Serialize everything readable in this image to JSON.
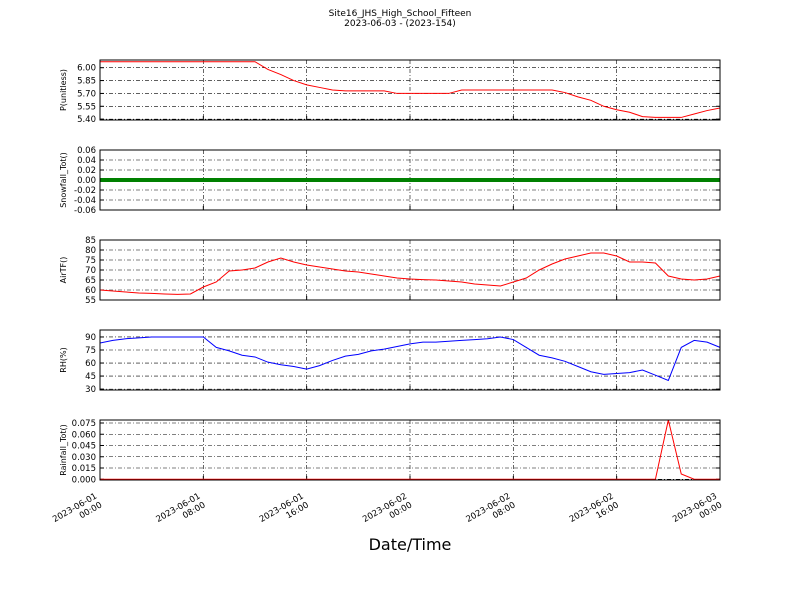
{
  "title": "Site16_JHS_High_School_Fifteen",
  "subtitle": "2023-06-03 - (2023-154)",
  "xlabel": "Date/Time",
  "chart_data": [
    {
      "type": "line",
      "ylabel": "P(unitless)",
      "x": [
        "2023-06-01 00:00",
        "2023-06-01 01:00",
        "2023-06-01 02:00",
        "2023-06-01 03:00",
        "2023-06-01 04:00",
        "2023-06-01 05:00",
        "2023-06-01 06:00",
        "2023-06-01 07:00",
        "2023-06-01 08:00",
        "2023-06-01 09:00",
        "2023-06-01 10:00",
        "2023-06-01 11:00",
        "2023-06-01 12:00",
        "2023-06-01 13:00",
        "2023-06-01 14:00",
        "2023-06-01 15:00",
        "2023-06-01 16:00",
        "2023-06-01 17:00",
        "2023-06-01 18:00",
        "2023-06-01 19:00",
        "2023-06-01 20:00",
        "2023-06-01 21:00",
        "2023-06-01 22:00",
        "2023-06-01 23:00",
        "2023-06-02 00:00",
        "2023-06-02 01:00",
        "2023-06-02 02:00",
        "2023-06-02 03:00",
        "2023-06-02 04:00",
        "2023-06-02 05:00",
        "2023-06-02 06:00",
        "2023-06-02 07:00",
        "2023-06-02 08:00",
        "2023-06-02 09:00",
        "2023-06-02 10:00",
        "2023-06-02 11:00",
        "2023-06-02 12:00",
        "2023-06-02 13:00",
        "2023-06-02 14:00",
        "2023-06-02 15:00",
        "2023-06-02 16:00",
        "2023-06-02 17:00",
        "2023-06-02 18:00",
        "2023-06-02 19:00",
        "2023-06-02 20:00",
        "2023-06-02 21:00",
        "2023-06-02 22:00",
        "2023-06-02 23:00",
        "2023-06-03 00:00"
      ],
      "series": [
        {
          "color": "#ff0000",
          "values": [
            6.07,
            6.07,
            6.07,
            6.07,
            6.07,
            6.07,
            6.07,
            6.07,
            6.07,
            6.07,
            6.07,
            6.07,
            6.07,
            5.98,
            5.92,
            5.85,
            5.8,
            5.77,
            5.74,
            5.73,
            5.73,
            5.73,
            5.73,
            5.7,
            5.7,
            5.7,
            5.7,
            5.7,
            5.74,
            5.74,
            5.74,
            5.74,
            5.74,
            5.74,
            5.74,
            5.74,
            5.71,
            5.66,
            5.62,
            5.55,
            5.51,
            5.48,
            5.43,
            5.42,
            5.42,
            5.42,
            5.46,
            5.5,
            5.53
          ]
        }
      ],
      "xlim": [
        "2023-06-01 00:00",
        "2023-06-03 00:00"
      ],
      "xticks": [
        "2023-06-01 00:00",
        "2023-06-01 08:00",
        "2023-06-01 16:00",
        "2023-06-02 00:00",
        "2023-06-02 08:00",
        "2023-06-02 16:00",
        "2023-06-03 00:00"
      ],
      "ylim": [
        5.39,
        6.09
      ],
      "yticks": [
        {
          "value": 5.4,
          "label": "5.40"
        },
        {
          "value": 5.55,
          "label": "5.55"
        },
        {
          "value": 5.7,
          "label": "5.70"
        },
        {
          "value": 5.85,
          "label": "5.85"
        },
        {
          "value": 6,
          "label": "6.00"
        }
      ],
      "grid": true
    },
    {
      "type": "line",
      "ylabel": "Snowfall_Tot()",
      "x": [
        "2023-06-01 00:00",
        "2023-06-01 01:00",
        "2023-06-01 02:00",
        "2023-06-01 03:00",
        "2023-06-01 04:00",
        "2023-06-01 05:00",
        "2023-06-01 06:00",
        "2023-06-01 07:00",
        "2023-06-01 08:00",
        "2023-06-01 09:00",
        "2023-06-01 10:00",
        "2023-06-01 11:00",
        "2023-06-01 12:00",
        "2023-06-01 13:00",
        "2023-06-01 14:00",
        "2023-06-01 15:00",
        "2023-06-01 16:00",
        "2023-06-01 17:00",
        "2023-06-01 18:00",
        "2023-06-01 19:00",
        "2023-06-01 20:00",
        "2023-06-01 21:00",
        "2023-06-01 22:00",
        "2023-06-01 23:00",
        "2023-06-02 00:00",
        "2023-06-02 01:00",
        "2023-06-02 02:00",
        "2023-06-02 03:00",
        "2023-06-02 04:00",
        "2023-06-02 05:00",
        "2023-06-02 06:00",
        "2023-06-02 07:00",
        "2023-06-02 08:00",
        "2023-06-02 09:00",
        "2023-06-02 10:00",
        "2023-06-02 11:00",
        "2023-06-02 12:00",
        "2023-06-02 13:00",
        "2023-06-02 14:00",
        "2023-06-02 15:00",
        "2023-06-02 16:00",
        "2023-06-02 17:00",
        "2023-06-02 18:00",
        "2023-06-02 19:00",
        "2023-06-02 20:00",
        "2023-06-02 21:00",
        "2023-06-02 22:00",
        "2023-06-02 23:00",
        "2023-06-03 00:00"
      ],
      "series": [
        {
          "color": "#008000",
          "values": [
            0,
            0,
            0,
            0,
            0,
            0,
            0,
            0,
            0,
            0,
            0,
            0,
            0,
            0,
            0,
            0,
            0,
            0,
            0,
            0,
            0,
            0,
            0,
            0,
            0,
            0,
            0,
            0,
            0,
            0,
            0,
            0,
            0,
            0,
            0,
            0,
            0,
            0,
            0,
            0,
            0,
            0,
            0,
            0,
            0,
            0,
            0,
            0,
            0
          ]
        }
      ],
      "xlim": [
        "2023-06-01 00:00",
        "2023-06-03 00:00"
      ],
      "xticks": [
        "2023-06-01 00:00",
        "2023-06-01 08:00",
        "2023-06-01 16:00",
        "2023-06-02 00:00",
        "2023-06-02 08:00",
        "2023-06-02 16:00",
        "2023-06-03 00:00"
      ],
      "ylim": [
        -0.06,
        0.06
      ],
      "yticks": [
        {
          "value": -0.06,
          "label": "-0.06"
        },
        {
          "value": -0.04,
          "label": "-0.04"
        },
        {
          "value": -0.02,
          "label": "-0.02"
        },
        {
          "value": 0,
          "label": "0.00"
        },
        {
          "value": 0.02,
          "label": "0.02"
        },
        {
          "value": 0.04,
          "label": "0.04"
        },
        {
          "value": 0.06,
          "label": "0.06"
        }
      ],
      "grid": true
    },
    {
      "type": "line",
      "ylabel": "AirTF()",
      "x": [
        "2023-06-01 00:00",
        "2023-06-01 01:00",
        "2023-06-01 02:00",
        "2023-06-01 03:00",
        "2023-06-01 04:00",
        "2023-06-01 05:00",
        "2023-06-01 06:00",
        "2023-06-01 07:00",
        "2023-06-01 08:00",
        "2023-06-01 09:00",
        "2023-06-01 10:00",
        "2023-06-01 11:00",
        "2023-06-01 12:00",
        "2023-06-01 13:00",
        "2023-06-01 14:00",
        "2023-06-01 15:00",
        "2023-06-01 16:00",
        "2023-06-01 17:00",
        "2023-06-01 18:00",
        "2023-06-01 19:00",
        "2023-06-01 20:00",
        "2023-06-01 21:00",
        "2023-06-01 22:00",
        "2023-06-01 23:00",
        "2023-06-02 00:00",
        "2023-06-02 01:00",
        "2023-06-02 02:00",
        "2023-06-02 03:00",
        "2023-06-02 04:00",
        "2023-06-02 05:00",
        "2023-06-02 06:00",
        "2023-06-02 07:00",
        "2023-06-02 08:00",
        "2023-06-02 09:00",
        "2023-06-02 10:00",
        "2023-06-02 11:00",
        "2023-06-02 12:00",
        "2023-06-02 13:00",
        "2023-06-02 14:00",
        "2023-06-02 15:00",
        "2023-06-02 16:00",
        "2023-06-02 17:00",
        "2023-06-02 18:00",
        "2023-06-02 19:00",
        "2023-06-02 20:00",
        "2023-06-02 21:00",
        "2023-06-02 22:00",
        "2023-06-02 23:00",
        "2023-06-03 00:00"
      ],
      "series": [
        {
          "color": "#ff0000",
          "values": [
            60,
            59.5,
            59,
            58.5,
            58.3,
            58,
            57.8,
            58,
            61.5,
            64,
            69.5,
            70,
            71,
            74,
            76,
            74,
            72.5,
            71.5,
            70.5,
            69.5,
            69,
            68,
            67,
            66,
            65.5,
            65.2,
            65,
            64.5,
            64,
            63,
            62.5,
            62,
            64,
            66,
            70,
            73,
            75.5,
            77,
            78.5,
            78.5,
            77,
            74,
            74,
            73.5,
            67,
            65.5,
            65,
            65.5,
            67
          ]
        }
      ],
      "xlim": [
        "2023-06-01 00:00",
        "2023-06-03 00:00"
      ],
      "xticks": [
        "2023-06-01 00:00",
        "2023-06-01 08:00",
        "2023-06-01 16:00",
        "2023-06-02 00:00",
        "2023-06-02 08:00",
        "2023-06-02 16:00",
        "2023-06-03 00:00"
      ],
      "ylim": [
        55,
        85
      ],
      "yticks": [
        55,
        60,
        65,
        70,
        75,
        80,
        85
      ],
      "grid": true
    },
    {
      "type": "line",
      "ylabel": "RH(%)",
      "x": [
        "2023-06-01 00:00",
        "2023-06-01 01:00",
        "2023-06-01 02:00",
        "2023-06-01 03:00",
        "2023-06-01 04:00",
        "2023-06-01 05:00",
        "2023-06-01 06:00",
        "2023-06-01 07:00",
        "2023-06-01 08:00",
        "2023-06-01 09:00",
        "2023-06-01 10:00",
        "2023-06-01 11:00",
        "2023-06-01 12:00",
        "2023-06-01 13:00",
        "2023-06-01 14:00",
        "2023-06-01 15:00",
        "2023-06-01 16:00",
        "2023-06-01 17:00",
        "2023-06-01 18:00",
        "2023-06-01 19:00",
        "2023-06-01 20:00",
        "2023-06-01 21:00",
        "2023-06-01 22:00",
        "2023-06-01 23:00",
        "2023-06-02 00:00",
        "2023-06-02 01:00",
        "2023-06-02 02:00",
        "2023-06-02 03:00",
        "2023-06-02 04:00",
        "2023-06-02 05:00",
        "2023-06-02 06:00",
        "2023-06-02 07:00",
        "2023-06-02 08:00",
        "2023-06-02 09:00",
        "2023-06-02 10:00",
        "2023-06-02 11:00",
        "2023-06-02 12:00",
        "2023-06-02 13:00",
        "2023-06-02 14:00",
        "2023-06-02 15:00",
        "2023-06-02 16:00",
        "2023-06-02 17:00",
        "2023-06-02 18:00",
        "2023-06-02 19:00",
        "2023-06-02 20:00",
        "2023-06-02 21:00",
        "2023-06-02 22:00",
        "2023-06-02 23:00",
        "2023-06-03 00:00"
      ],
      "series": [
        {
          "color": "#0000ff",
          "values": [
            83,
            86,
            88,
            89,
            90,
            90,
            90,
            90,
            90,
            78,
            74,
            69,
            67,
            61,
            58,
            56,
            53,
            57,
            63,
            68,
            70,
            74,
            76,
            79,
            82,
            84,
            84,
            85,
            86,
            87,
            88,
            90,
            87,
            78,
            69,
            66,
            62,
            56,
            50,
            47,
            48,
            49,
            52,
            46,
            40,
            78,
            86,
            84,
            78
          ]
        }
      ],
      "xlim": [
        "2023-06-01 00:00",
        "2023-06-03 00:00"
      ],
      "xticks": [
        "2023-06-01 00:00",
        "2023-06-01 08:00",
        "2023-06-01 16:00",
        "2023-06-02 00:00",
        "2023-06-02 08:00",
        "2023-06-02 16:00",
        "2023-06-03 00:00"
      ],
      "ylim": [
        29,
        98
      ],
      "yticks": [
        30,
        45,
        60,
        75,
        90
      ],
      "grid": true
    },
    {
      "type": "line",
      "ylabel": "Rainfall_Tot()",
      "x": [
        "2023-06-01 00:00",
        "2023-06-01 01:00",
        "2023-06-01 02:00",
        "2023-06-01 03:00",
        "2023-06-01 04:00",
        "2023-06-01 05:00",
        "2023-06-01 06:00",
        "2023-06-01 07:00",
        "2023-06-01 08:00",
        "2023-06-01 09:00",
        "2023-06-01 10:00",
        "2023-06-01 11:00",
        "2023-06-01 12:00",
        "2023-06-01 13:00",
        "2023-06-01 14:00",
        "2023-06-01 15:00",
        "2023-06-01 16:00",
        "2023-06-01 17:00",
        "2023-06-01 18:00",
        "2023-06-01 19:00",
        "2023-06-01 20:00",
        "2023-06-01 21:00",
        "2023-06-01 22:00",
        "2023-06-01 23:00",
        "2023-06-02 00:00",
        "2023-06-02 01:00",
        "2023-06-02 02:00",
        "2023-06-02 03:00",
        "2023-06-02 04:00",
        "2023-06-02 05:00",
        "2023-06-02 06:00",
        "2023-06-02 07:00",
        "2023-06-02 08:00",
        "2023-06-02 09:00",
        "2023-06-02 10:00",
        "2023-06-02 11:00",
        "2023-06-02 12:00",
        "2023-06-02 13:00",
        "2023-06-02 14:00",
        "2023-06-02 15:00",
        "2023-06-02 16:00",
        "2023-06-02 17:00",
        "2023-06-02 18:00",
        "2023-06-02 19:00",
        "2023-06-02 20:00",
        "2023-06-02 21:00",
        "2023-06-02 22:00",
        "2023-06-02 23:00",
        "2023-06-03 00:00"
      ],
      "series": [
        {
          "color": "#ff0000",
          "values": [
            0,
            0,
            0,
            0,
            0,
            0,
            0,
            0,
            0,
            0,
            0,
            0,
            0,
            0,
            0,
            0,
            0,
            0,
            0,
            0,
            0,
            0,
            0,
            0,
            0,
            0,
            0,
            0,
            0,
            0,
            0,
            0,
            0,
            0,
            0,
            0,
            0,
            0,
            0,
            0,
            0,
            0,
            0,
            0,
            0.079,
            0.007,
            0,
            0,
            0
          ]
        }
      ],
      "xlim": [
        "2023-06-01 00:00",
        "2023-06-03 00:00"
      ],
      "xticks": [
        {
          "value": "2023-06-01 00:00",
          "label": "2023-06-01\n00:00"
        },
        {
          "value": "2023-06-01 08:00",
          "label": "2023-06-01\n08:00"
        },
        {
          "value": "2023-06-01 16:00",
          "label": "2023-06-01\n16:00"
        },
        {
          "value": "2023-06-02 00:00",
          "label": "2023-06-02\n00:00"
        },
        {
          "value": "2023-06-02 08:00",
          "label": "2023-06-02\n08:00"
        },
        {
          "value": "2023-06-02 16:00",
          "label": "2023-06-02\n16:00"
        },
        {
          "value": "2023-06-03 00:00",
          "label": "2023-06-03\n00:00"
        }
      ],
      "ylim": [
        -0.001,
        0.079
      ],
      "yticks": [
        {
          "value": 0,
          "label": "0.000"
        },
        {
          "value": 0.015,
          "label": "0.015"
        },
        {
          "value": 0.03,
          "label": "0.030"
        },
        {
          "value": 0.045,
          "label": "0.045"
        },
        {
          "value": 0.06,
          "label": "0.060"
        },
        {
          "value": 0.075,
          "label": "0.075"
        }
      ],
      "grid": true
    }
  ]
}
